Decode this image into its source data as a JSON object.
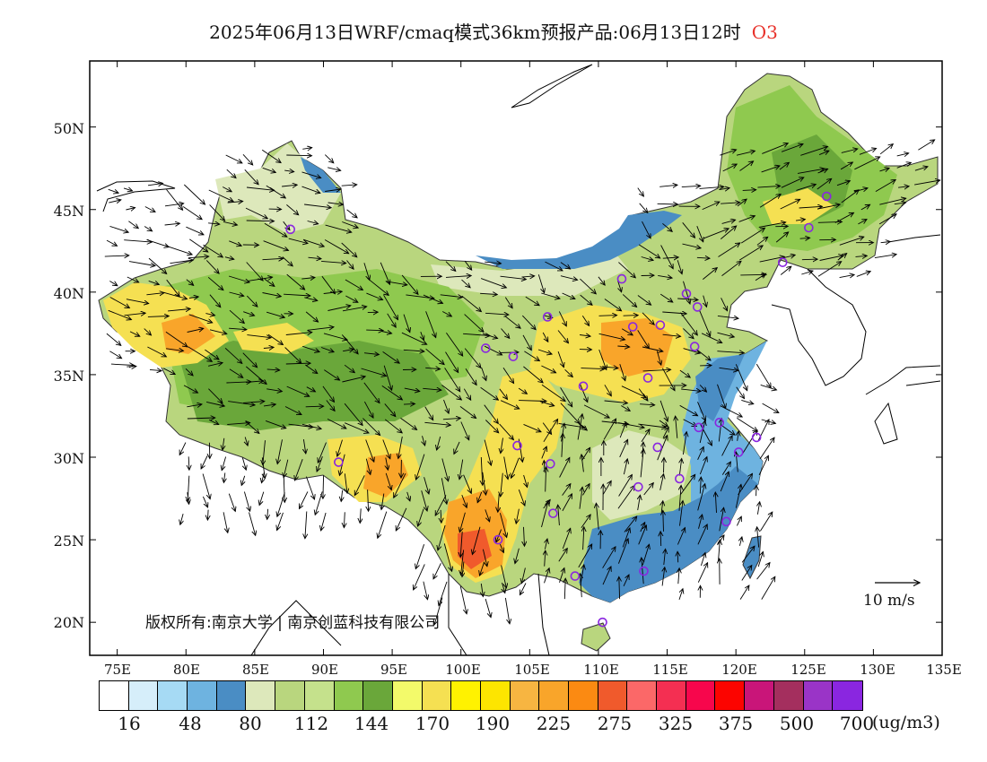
{
  "title": {
    "main": "2025年06月13日WRF/cmaq模式36km预报产品:06月13日12时",
    "pollutant": "O3"
  },
  "axes": {
    "lat_labels": [
      "50N",
      "45N",
      "40N",
      "35N",
      "30N",
      "25N",
      "20N"
    ],
    "lon_labels": [
      "75E",
      "80E",
      "85E",
      "90E",
      "95E",
      "100E",
      "105E",
      "110E",
      "115E",
      "120E",
      "125E",
      "130E",
      "135E"
    ]
  },
  "copyright": {
    "left": "版权所有:南京大学",
    "right": "南京创蓝科技有限公司"
  },
  "wind_reference": "10 m/s",
  "legend": {
    "colors": [
      "#ffffff",
      "#d6eefa",
      "#a6daf4",
      "#6eb3e0",
      "#4a8dc4",
      "#dde8bb",
      "#b9d67e",
      "#c5e18c",
      "#8fc94f",
      "#6aa73a",
      "#f3fa6a",
      "#f5e052",
      "#fff200",
      "#fde500",
      "#f7b541",
      "#f9a52a",
      "#fb8a12",
      "#f05a2c",
      "#fb6868",
      "#f42f52",
      "#f7064c",
      "#fc0400",
      "#c91579",
      "#a42f5e",
      "#9a34c7",
      "#8a26e0"
    ],
    "ticks": [
      "16",
      "48",
      "80",
      "112",
      "144",
      "170",
      "190",
      "225",
      "275",
      "325",
      "375",
      "500",
      "700"
    ],
    "unit": "(ug/m3)"
  },
  "stations": [
    {
      "lon": 87.6,
      "lat": 43.8
    },
    {
      "lon": 101.8,
      "lat": 36.6
    },
    {
      "lon": 103.8,
      "lat": 36.1
    },
    {
      "lon": 106.3,
      "lat": 38.5
    },
    {
      "lon": 111.7,
      "lat": 40.8
    },
    {
      "lon": 112.5,
      "lat": 37.9
    },
    {
      "lon": 114.5,
      "lat": 38.0
    },
    {
      "lon": 116.4,
      "lat": 39.9
    },
    {
      "lon": 117.2,
      "lat": 39.1
    },
    {
      "lon": 117.0,
      "lat": 36.7
    },
    {
      "lon": 113.6,
      "lat": 34.8
    },
    {
      "lon": 108.9,
      "lat": 34.3
    },
    {
      "lon": 104.1,
      "lat": 30.7
    },
    {
      "lon": 106.5,
      "lat": 29.6
    },
    {
      "lon": 91.1,
      "lat": 29.7
    },
    {
      "lon": 102.7,
      "lat": 25.0
    },
    {
      "lon": 106.7,
      "lat": 26.6
    },
    {
      "lon": 108.3,
      "lat": 22.8
    },
    {
      "lon": 110.3,
      "lat": 20.0
    },
    {
      "lon": 113.3,
      "lat": 23.1
    },
    {
      "lon": 119.3,
      "lat": 26.1
    },
    {
      "lon": 112.9,
      "lat": 28.2
    },
    {
      "lon": 115.9,
      "lat": 28.7
    },
    {
      "lon": 114.3,
      "lat": 30.6
    },
    {
      "lon": 117.3,
      "lat": 31.8
    },
    {
      "lon": 118.8,
      "lat": 32.1
    },
    {
      "lon": 120.2,
      "lat": 30.3
    },
    {
      "lon": 121.5,
      "lat": 31.2
    },
    {
      "lon": 123.4,
      "lat": 41.8
    },
    {
      "lon": 125.3,
      "lat": 43.9
    },
    {
      "lon": 126.6,
      "lat": 45.8
    }
  ]
}
